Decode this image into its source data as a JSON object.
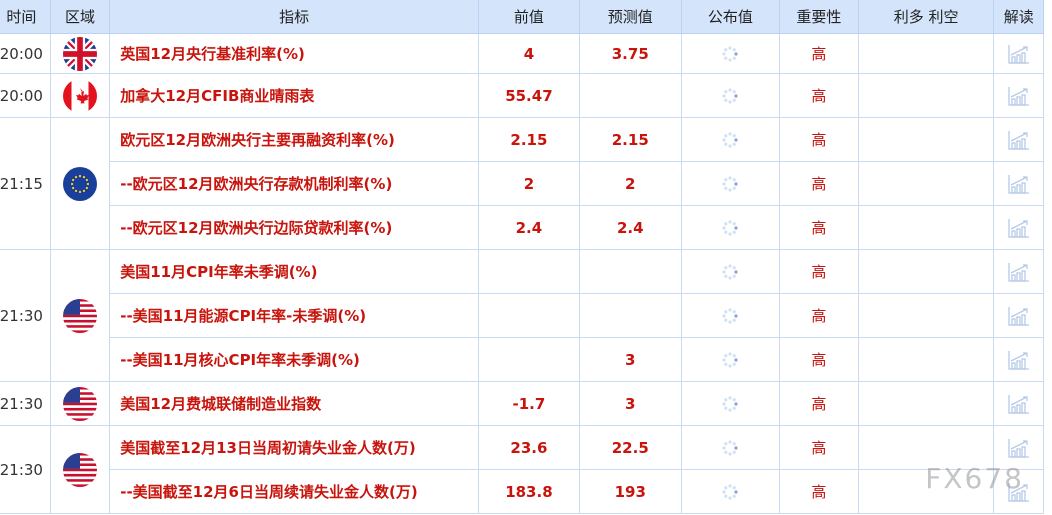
{
  "headers": [
    "时间",
    "区域",
    "指标",
    "前值",
    "预测值",
    "公布值",
    "重要性",
    "利多 利空",
    "解读"
  ],
  "groups": [
    {
      "time": "20:00",
      "flag": "uk-flag",
      "rows": [
        {
          "name": "英国12月央行基准利率(%)",
          "prev": "4",
          "forecast": "3.75",
          "importance": "高"
        }
      ]
    },
    {
      "time": "20:00",
      "flag": "canada-flag",
      "rows": [
        {
          "name": "加拿大12月CFIB商业晴雨表",
          "prev": "55.47",
          "forecast": "",
          "importance": "高"
        }
      ]
    },
    {
      "time": "21:15",
      "flag": "eu-flag",
      "rows": [
        {
          "name": "欧元区12月欧洲央行主要再融资利率(%)",
          "prev": "2.15",
          "forecast": "2.15",
          "importance": "高"
        },
        {
          "name": "--欧元区12月欧洲央行存款机制利率(%)",
          "prev": "2",
          "forecast": "2",
          "importance": "高"
        },
        {
          "name": "--欧元区12月欧洲央行边际贷款利率(%)",
          "prev": "2.4",
          "forecast": "2.4",
          "importance": "高"
        }
      ]
    },
    {
      "time": "21:30",
      "flag": "us-flag",
      "rows": [
        {
          "name": "美国11月CPI年率未季调(%)",
          "prev": "",
          "forecast": "",
          "importance": "高"
        },
        {
          "name": "--美国11月能源CPI年率-未季调(%)",
          "prev": "",
          "forecast": "",
          "importance": "高"
        },
        {
          "name": "--美国11月核心CPI年率未季调(%)",
          "prev": "",
          "forecast": "3",
          "importance": "高"
        }
      ]
    },
    {
      "time": "21:30",
      "flag": "us-flag",
      "rows": [
        {
          "name": "美国12月费城联储制造业指数",
          "prev": "-1.7",
          "forecast": "3",
          "importance": "高"
        }
      ]
    },
    {
      "time": "21:30",
      "flag": "us-flag",
      "rows": [
        {
          "name": "美国截至12月13日当周初请失业金人数(万)",
          "prev": "23.6",
          "forecast": "22.5",
          "importance": "高"
        },
        {
          "name": "--美国截至12月6日当周续请失业金人数(万)",
          "prev": "183.8",
          "forecast": "193",
          "importance": "高"
        }
      ]
    }
  ],
  "watermark": "FX678",
  "colors": {
    "header_bg": "#d4e4fb",
    "accent_red": "#c8140c",
    "border": "#c8daf4"
  }
}
